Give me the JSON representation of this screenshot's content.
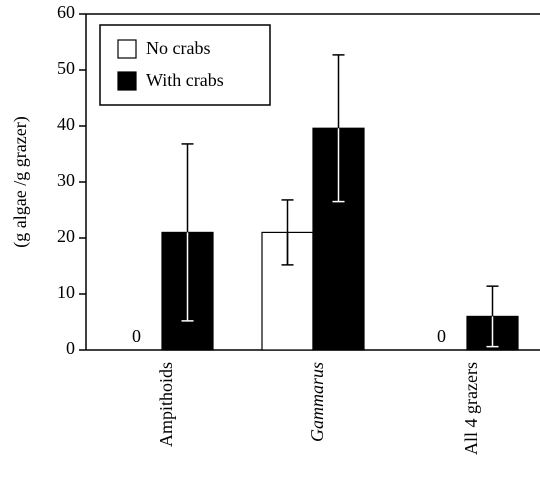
{
  "chart_data": {
    "type": "bar",
    "ylabel": "(g algae /g grazer)",
    "categories": [
      "Ampithoids",
      "Gammarus",
      "All 4 grazers"
    ],
    "series": [
      {
        "name": "No crabs",
        "color": "#ffffff",
        "values": [
          0,
          21,
          0
        ],
        "error": [
          0,
          5.8,
          0
        ]
      },
      {
        "name": "With crabs",
        "color": "#000000",
        "values": [
          21,
          39.6,
          6
        ],
        "error": [
          15.8,
          13.1,
          5.4
        ]
      }
    ],
    "ylim": [
      0,
      60
    ],
    "yticks": [
      0,
      10,
      20,
      30,
      40,
      50,
      60
    ],
    "legend": "upper left",
    "italic_categories": [
      1
    ]
  }
}
